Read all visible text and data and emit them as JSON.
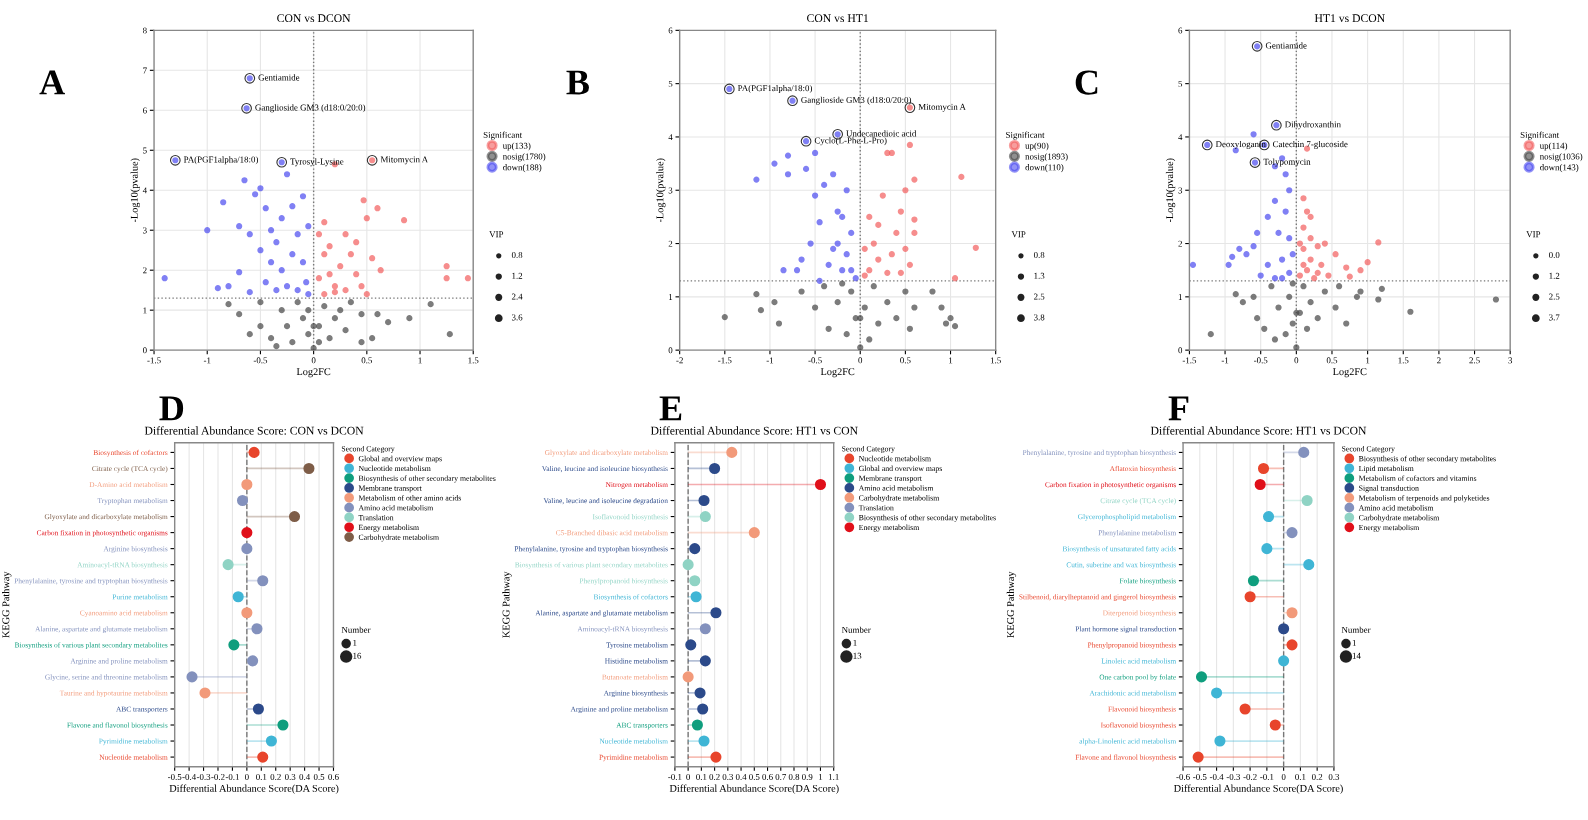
{
  "chart_data": [
    {
      "type": "scatter",
      "title": "CON vs DCON",
      "xlabel": "Log2FC",
      "ylabel": "-Log10(pvalue)",
      "xlim": [
        -1.5,
        1.5
      ],
      "xticks": [
        -1.5,
        -1,
        -0.5,
        0,
        0.5,
        1,
        1.5
      ],
      "ylim": [
        0,
        8
      ],
      "yticks": [
        0,
        1,
        2,
        3,
        4,
        5,
        6,
        7,
        8
      ],
      "grid": true,
      "legend": "right",
      "legend_title": "Significant",
      "marker": "circle",
      "ref_lines": [
        {
          "axis": "x",
          "value": 0,
          "line_style": "dotted"
        },
        {
          "axis": "y",
          "value": 1.3,
          "line_style": "dotted"
        }
      ],
      "series": [
        {
          "name": "up(133)",
          "color": "#f25c5c",
          "x": [
            0.55,
            0.2,
            0.47,
            0.6,
            0.85,
            0.5,
            0.3,
            0.1,
            0.15,
            0.35,
            0.55,
            0.63,
            1.25,
            1.25,
            1.45,
            0.4,
            0.25,
            0.1,
            0.05,
            0.2,
            0.3,
            0.45,
            0.1,
            0.15,
            0.05,
            0.4,
            0.5,
            0.2
          ],
          "values": [
            4.75,
            4.65,
            3.75,
            3.55,
            3.25,
            3.3,
            2.9,
            3.2,
            2.6,
            2.4,
            2.3,
            2.0,
            2.1,
            1.8,
            1.8,
            1.9,
            2.1,
            2.4,
            1.8,
            1.6,
            1.5,
            1.6,
            1.4,
            1.9,
            2.9,
            2.7,
            1.4,
            1.45
          ]
        },
        {
          "name": "nosig(1780)",
          "color": "#444444",
          "x": [
            -0.8,
            -0.7,
            -0.5,
            -0.5,
            -0.4,
            -0.3,
            -0.25,
            -0.2,
            -0.15,
            -0.1,
            -0.05,
            0,
            0.05,
            0.1,
            0.15,
            0.2,
            0.3,
            0.35,
            0.45,
            0.6,
            0.7,
            0.9,
            1.1,
            1.28,
            0.45,
            -0.6,
            0.0,
            -0.05,
            0.05,
            0.55,
            -0.35,
            0.25
          ],
          "values": [
            1.15,
            0.9,
            1.2,
            0.6,
            0.3,
            1.0,
            0.6,
            0.2,
            1.2,
            0.8,
            0.4,
            0.05,
            0.6,
            1.1,
            0.3,
            0.8,
            0.5,
            1.2,
            0.9,
            0.9,
            0.7,
            0.8,
            1.15,
            0.4,
            0.2,
            0.4,
            0.6,
            1.0,
            0.2,
            0.3,
            0.1,
            1.0
          ]
        },
        {
          "name": "down(188)",
          "color": "#4a4af0",
          "x": [
            -1.4,
            -1.0,
            -0.85,
            -0.8,
            -0.7,
            -0.7,
            -0.65,
            -0.6,
            -0.55,
            -0.5,
            -0.5,
            -0.45,
            -0.45,
            -0.4,
            -0.4,
            -0.35,
            -0.35,
            -0.3,
            -0.3,
            -0.25,
            -0.25,
            -0.2,
            -0.2,
            -0.15,
            -0.15,
            -0.1,
            -0.1,
            -0.07,
            -0.05,
            -0.05,
            -0.6,
            -0.63,
            -1.3,
            -0.3,
            -0.6,
            -0.9
          ],
          "values": [
            1.8,
            3.0,
            3.7,
            1.6,
            3.1,
            1.95,
            4.25,
            2.9,
            3.9,
            4.05,
            2.5,
            3.55,
            1.7,
            3.0,
            2.2,
            2.7,
            1.5,
            3.3,
            2.0,
            4.4,
            1.6,
            3.6,
            2.4,
            2.9,
            1.5,
            3.85,
            2.2,
            1.7,
            3.1,
            1.4,
            6.8,
            6.05,
            4.75,
            4.7,
            1.45,
            1.55
          ]
        }
      ],
      "annotations": [
        "A",
        {
          "text": "Gentiamide",
          "x": -0.6,
          "y": 6.8
        },
        {
          "text": "Ganglioside GM3 (d18:0/20:0)",
          "x": -0.63,
          "y": 6.05
        },
        {
          "text": "PA(PGF1alpha/18:0)",
          "x": -1.3,
          "y": 4.75
        },
        {
          "text": "Tyrosyl-Lysine",
          "x": -0.3,
          "y": 4.7
        },
        {
          "text": "Mitomycin A",
          "x": 0.55,
          "y": 4.75
        },
        "VIP",
        "0.8",
        "1.2",
        "2.4",
        "3.6"
      ]
    },
    {
      "type": "scatter",
      "title": "CON vs HT1",
      "xlabel": "Log2FC",
      "ylabel": "-Log10(pvalue)",
      "xlim": [
        -2,
        1.5
      ],
      "xticks": [
        -2,
        -1.5,
        -1,
        -0.5,
        0,
        0.5,
        1,
        1.5
      ],
      "ylim": [
        0,
        6
      ],
      "yticks": [
        0,
        1,
        2,
        3,
        4,
        5,
        6
      ],
      "grid": true,
      "legend": "right",
      "legend_title": "Significant",
      "marker": "circle",
      "ref_lines": [
        {
          "axis": "x",
          "value": 0,
          "line_style": "dotted"
        },
        {
          "axis": "y",
          "value": 1.3,
          "line_style": "dotted"
        }
      ],
      "series": [
        {
          "name": "up(90)",
          "color": "#f25c5c",
          "x": [
            0.55,
            0.55,
            0.3,
            0.6,
            1.12,
            1.28,
            1.05,
            0.5,
            0.25,
            0.45,
            0.6,
            0.4,
            0.2,
            0.1,
            0.5,
            0.35,
            0.2,
            0.1,
            0.05,
            0.3,
            0.45,
            0.55,
            0.15,
            0.05,
            0.6,
            0.35
          ],
          "values": [
            4.55,
            3.85,
            3.7,
            3.2,
            3.25,
            1.92,
            1.35,
            3.0,
            2.9,
            2.6,
            2.45,
            2.2,
            2.35,
            2.5,
            1.9,
            1.8,
            1.7,
            1.5,
            1.9,
            1.45,
            1.45,
            1.6,
            2.0,
            1.4,
            2.2,
            3.7
          ]
        },
        {
          "name": "nosig(1893)",
          "color": "#444444",
          "x": [
            -1.5,
            -1.15,
            -1.1,
            -0.95,
            -0.9,
            -0.65,
            -0.5,
            -0.4,
            -0.35,
            -0.25,
            -0.15,
            -0.1,
            -0.05,
            0,
            0.05,
            0.1,
            0.15,
            0.2,
            0.3,
            0.4,
            0.5,
            0.55,
            0.6,
            0.8,
            0.9,
            0.95,
            1.0,
            1.05,
            0.0,
            -0.2
          ],
          "values": [
            0.62,
            1.05,
            0.75,
            0.9,
            0.5,
            1.1,
            0.8,
            1.2,
            0.4,
            0.9,
            0.3,
            1.1,
            0.6,
            0.05,
            0.8,
            0.2,
            1.2,
            0.5,
            0.9,
            0.6,
            1.1,
            0.4,
            0.8,
            1.1,
            0.8,
            0.5,
            0.6,
            0.45,
            0.6,
            1.25
          ]
        },
        {
          "name": "down(110)",
          "color": "#4a4af0",
          "x": [
            -1.45,
            -0.75,
            -0.6,
            -0.25,
            -1.15,
            -0.95,
            -0.8,
            -0.8,
            -0.6,
            -0.5,
            -0.45,
            -0.4,
            -0.55,
            -0.7,
            -0.85,
            -0.65,
            -0.3,
            -0.25,
            -0.25,
            -0.2,
            -0.15,
            -0.35,
            -0.1,
            -0.1,
            -0.05,
            -0.2,
            -0.3,
            -0.45,
            -0.15,
            -0.5
          ],
          "values": [
            4.9,
            4.68,
            3.92,
            4.05,
            3.2,
            3.5,
            3.3,
            3.65,
            3.4,
            2.9,
            2.4,
            3.1,
            2.0,
            1.5,
            1.5,
            1.7,
            3.3,
            2.6,
            2.0,
            2.5,
            1.8,
            1.6,
            2.2,
            1.5,
            1.35,
            1.5,
            1.9,
            1.3,
            3.0,
            3.7
          ]
        }
      ],
      "annotations": [
        "B",
        {
          "text": "PA(PGF1alpha/18:0)",
          "x": -1.45,
          "y": 4.9
        },
        {
          "text": "Ganglioside GM3 (d18:0/20:0)",
          "x": -0.75,
          "y": 4.68
        },
        {
          "text": "Mitomycin A",
          "x": 0.55,
          "y": 4.55
        },
        {
          "text": "Undecanedioic acid",
          "x": -0.25,
          "y": 4.05
        },
        {
          "text": "Cyclo(L-Phe-L-Pro)",
          "x": -0.6,
          "y": 3.92
        },
        "VIP",
        "0.8",
        "1.3",
        "2.5",
        "3.8"
      ]
    },
    {
      "type": "scatter",
      "title": "HT1 vs DCON",
      "xlabel": "Log2FC",
      "ylabel": "-Log10(pvalue)",
      "xlim": [
        -1.5,
        3
      ],
      "xticks": [
        -1.5,
        -1,
        -0.5,
        0,
        0.5,
        1,
        1.5,
        2,
        2.5,
        3
      ],
      "ylim": [
        0,
        6
      ],
      "yticks": [
        0,
        1,
        2,
        3,
        4,
        5,
        6
      ],
      "grid": true,
      "legend": "right",
      "legend_title": "Significant",
      "marker": "circle",
      "ref_lines": [
        {
          "axis": "x",
          "value": 0,
          "line_style": "dotted"
        },
        {
          "axis": "y",
          "value": 1.3,
          "line_style": "dotted"
        }
      ],
      "series": [
        {
          "name": "up(114)",
          "color": "#f25c5c",
          "x": [
            0.15,
            0.1,
            0.15,
            0.1,
            0.2,
            0.3,
            0.4,
            0.1,
            0.2,
            0.35,
            0.15,
            0.05,
            0.45,
            0.7,
            0.9,
            0.75,
            1.0,
            1.15,
            0.25,
            0.1,
            0.3,
            0.05,
            0.2,
            0.55
          ],
          "values": [
            3.78,
            2.85,
            2.6,
            2.3,
            2.1,
            1.95,
            2.0,
            1.9,
            1.7,
            1.6,
            1.5,
            1.4,
            1.4,
            1.55,
            1.5,
            1.38,
            1.65,
            2.02,
            1.35,
            1.6,
            1.45,
            2.0,
            2.5,
            1.8
          ]
        },
        {
          "name": "nosig(1036)",
          "color": "#444444",
          "x": [
            -1.2,
            -0.85,
            -0.75,
            -0.6,
            -0.55,
            -0.45,
            -0.35,
            -0.25,
            -0.15,
            -0.1,
            -0.05,
            0,
            0.05,
            0.1,
            0.15,
            0.2,
            0.3,
            0.4,
            0.55,
            0.7,
            0.9,
            1.15,
            1.2,
            1.6,
            2.8,
            0.85,
            0.0,
            -0.3,
            0.6,
            -0.05
          ],
          "values": [
            0.3,
            1.05,
            0.9,
            1.0,
            0.6,
            0.4,
            1.2,
            0.8,
            0.3,
            1.0,
            0.5,
            0.05,
            0.7,
            1.2,
            0.4,
            0.9,
            0.6,
            1.1,
            0.8,
            0.5,
            1.1,
            0.95,
            1.15,
            0.72,
            0.95,
            1.0,
            0.7,
            0.2,
            1.2,
            1.25
          ]
        },
        {
          "name": "down(143)",
          "color": "#4a4af0",
          "x": [
            -0.55,
            -0.28,
            -0.6,
            -0.45,
            -1.25,
            -0.58,
            -0.85,
            -0.2,
            -0.3,
            -0.15,
            -0.1,
            -0.3,
            -0.15,
            -0.4,
            -0.25,
            -0.55,
            -0.1,
            -0.6,
            -0.8,
            -0.9,
            -0.7,
            -0.4,
            -0.2,
            -0.05,
            -0.5,
            -1.45,
            -0.95,
            -0.3,
            -0.1,
            -0.2
          ],
          "values": [
            5.7,
            4.22,
            4.05,
            3.85,
            3.85,
            3.52,
            3.75,
            3.6,
            3.45,
            3.3,
            3.0,
            2.8,
            2.6,
            2.5,
            2.2,
            2.2,
            2.1,
            1.95,
            1.9,
            1.75,
            1.8,
            1.6,
            1.7,
            1.8,
            1.4,
            1.6,
            1.6,
            1.35,
            1.45,
            1.35
          ]
        }
      ],
      "annotations": [
        "C",
        {
          "text": "Gentiamide",
          "x": -0.55,
          "y": 5.7
        },
        {
          "text": "Dihydroxanthin",
          "x": -0.28,
          "y": 4.22
        },
        {
          "text": "Catechin 7-glucoside",
          "x": -0.45,
          "y": 3.85
        },
        {
          "text": "Deoxyloganin",
          "x": -1.25,
          "y": 3.85
        },
        {
          "text": "Tolypomycin",
          "x": -0.58,
          "y": 3.52
        },
        "VIP",
        "0.0",
        "1.2",
        "2.5",
        "3.7"
      ]
    },
    {
      "type": "lollipop",
      "orientation": "horizontal",
      "title": "Differential Abundance Score: CON vs DCON",
      "xlabel": "Differential Abundance Score(DA Score)",
      "ylabel": "KEGG Pathway",
      "legend_title": "Second Category",
      "legend": "right",
      "grid": "x",
      "marker": "circle",
      "xlim": [
        -0.5,
        0.6
      ],
      "xticks": [
        -0.5,
        -0.4,
        -0.3,
        -0.2,
        -0.1,
        0,
        0.1,
        0.2,
        0.3,
        0.4,
        0.5,
        0.6
      ],
      "ref_lines": [
        {
          "axis": "x",
          "value": 0,
          "line_style": "dashed"
        }
      ],
      "categories": [
        "Biosynthesis of cofactors",
        "Citrate cycle (TCA cycle)",
        "D-Amino acid metabolism",
        "Tryptophan metabolism",
        "Glyoxylate and dicarboxylate metabolism",
        "Carbon fixation in photosynthetic organisms",
        "Arginine biosynthesis",
        "Aminoacyl-tRNA biosynthesis",
        "Phenylalanine, tyrosine and tryptophan biosynthesis",
        "Purine metabolism",
        "Cyanoamino acid metabolism",
        "Alanine, aspartate and glutamate metabolism",
        "Biosynthesis of various plant secondary metabolites",
        "Arginine and proline metabolism",
        "Glycine, serine and threonine metabolism",
        "Taurine and hypotaurine metabolism",
        "ABC transporters",
        "Flavone and flavonol biosynthesis",
        "Pyrimidine metabolism",
        "Nucleotide metabolism"
      ],
      "series": [
        {
          "name": "Global and overview maps",
          "color": "#e8452c",
          "values": [
            0.05,
            null,
            null,
            null,
            null,
            null,
            null,
            null,
            null,
            null,
            null,
            null,
            null,
            null,
            null,
            null,
            null,
            null,
            null,
            0.11
          ]
        },
        {
          "name": "Nucleotide metabolism",
          "color": "#3fb5d5",
          "values": [
            null,
            null,
            null,
            null,
            null,
            null,
            null,
            null,
            null,
            -0.06,
            null,
            null,
            null,
            null,
            null,
            null,
            null,
            null,
            0.17,
            null
          ]
        },
        {
          "name": "Biosynthesis of other secondary metabolites",
          "color": "#0f9e7e",
          "values": [
            null,
            null,
            null,
            null,
            null,
            null,
            null,
            null,
            null,
            null,
            null,
            null,
            -0.09,
            null,
            null,
            null,
            null,
            0.25,
            null,
            null
          ]
        },
        {
          "name": "Membrane transport",
          "color": "#2c4a8a",
          "values": [
            null,
            null,
            null,
            null,
            null,
            null,
            null,
            null,
            null,
            null,
            null,
            null,
            null,
            null,
            null,
            null,
            0.08,
            null,
            null,
            null
          ]
        },
        {
          "name": "Metabolism of other amino acids",
          "color": "#f29a7a",
          "values": [
            null,
            null,
            0,
            null,
            null,
            null,
            null,
            null,
            null,
            null,
            0,
            null,
            null,
            null,
            null,
            -0.29,
            null,
            null,
            null,
            null
          ]
        },
        {
          "name": "Amino acid metabolism",
          "color": "#8391bd",
          "values": [
            null,
            null,
            null,
            -0.03,
            null,
            null,
            0,
            null,
            0.11,
            null,
            null,
            0.07,
            null,
            0.04,
            -0.38,
            null,
            null,
            null,
            null,
            null
          ]
        },
        {
          "name": "Translation",
          "color": "#8fd3c4",
          "values": [
            null,
            null,
            null,
            null,
            null,
            null,
            null,
            -0.13,
            null,
            null,
            null,
            null,
            null,
            null,
            null,
            null,
            null,
            null,
            null,
            null
          ]
        },
        {
          "name": "Energy metabolism",
          "color": "#e0101a",
          "values": [
            null,
            null,
            null,
            null,
            null,
            0,
            null,
            null,
            null,
            null,
            null,
            null,
            null,
            null,
            null,
            null,
            null,
            null,
            null,
            null
          ]
        },
        {
          "name": "Carbohydrate metabolism",
          "color": "#7e5d48",
          "values": [
            null,
            0.43,
            null,
            null,
            0.33,
            null,
            null,
            null,
            null,
            null,
            null,
            null,
            null,
            null,
            null,
            null,
            null,
            null,
            null,
            null
          ]
        }
      ],
      "annotations": [
        "D",
        "Number",
        "1",
        "16"
      ]
    },
    {
      "type": "lollipop",
      "orientation": "horizontal",
      "title": "Differential Abundance Score: HT1 vs CON",
      "xlabel": "Differential Abundance Score(DA Score)",
      "ylabel": "KEGG Pathway",
      "legend_title": "Second Category",
      "legend": "right",
      "grid": "x",
      "marker": "circle",
      "xlim": [
        -0.1,
        1.1
      ],
      "xticks": [
        -0.1,
        0,
        0.1,
        0.2,
        0.3,
        0.4,
        0.5,
        0.6,
        0.7,
        0.8,
        0.9,
        1,
        1.1
      ],
      "ref_lines": [
        {
          "axis": "x",
          "value": 0,
          "line_style": "dashed"
        }
      ],
      "categories": [
        "Glyoxylate and dicarboxylate metabolism",
        "Valine, leucine and isoleucine biosynthesis",
        "Nitrogen metabolism",
        "Valine, leucine and isoleucine degradation",
        "Isoflavonoid biosynthesis",
        "C5-Branched dibasic acid metabolism",
        "Phenylalanine, tyrosine and tryptophan biosynthesis",
        "Biosynthesis of various plant secondary metabolites",
        "Phenylpropanoid biosynthesis",
        "Biosynthesis of cofactors",
        "Alanine, aspartate and glutamate metabolism",
        "Aminoacyl-tRNA biosynthesis",
        "Tyrosine metabolism",
        "Histidine metabolism",
        "Butanoate metabolism",
        "Arginine biosynthesis",
        "Arginine and proline metabolism",
        "ABC transporters",
        "Nucleotide metabolism",
        "Pyrimidine metabolism"
      ],
      "series": [
        {
          "name": "Nucleotide metabolism",
          "color": "#e8452c",
          "values": [
            null,
            null,
            null,
            null,
            null,
            null,
            null,
            null,
            null,
            null,
            null,
            null,
            null,
            null,
            null,
            null,
            null,
            null,
            null,
            0.21
          ]
        },
        {
          "name": "Global and overview maps",
          "color": "#3fb5d5",
          "values": [
            null,
            null,
            null,
            null,
            null,
            null,
            null,
            null,
            null,
            0.06,
            null,
            null,
            null,
            null,
            null,
            null,
            null,
            null,
            0.12,
            null
          ]
        },
        {
          "name": "Membrane transport",
          "color": "#0f9e7e",
          "values": [
            null,
            null,
            null,
            null,
            null,
            null,
            null,
            null,
            null,
            null,
            null,
            null,
            null,
            null,
            null,
            null,
            null,
            0.07,
            null,
            null
          ]
        },
        {
          "name": "Amino acid metabolism",
          "color": "#2c4a8a",
          "values": [
            null,
            0.2,
            null,
            0.12,
            null,
            null,
            0.05,
            null,
            null,
            null,
            0.21,
            null,
            0.02,
            0.13,
            null,
            0.09,
            0.11,
            null,
            null,
            null
          ]
        },
        {
          "name": "Carbohydrate metabolism",
          "color": "#f29a7a",
          "values": [
            0.33,
            null,
            null,
            null,
            null,
            0.5,
            null,
            null,
            null,
            null,
            null,
            null,
            null,
            null,
            0,
            null,
            null,
            null,
            null,
            null
          ]
        },
        {
          "name": "Translation",
          "color": "#8391bd",
          "values": [
            null,
            null,
            null,
            null,
            null,
            null,
            null,
            null,
            null,
            null,
            null,
            0.13,
            null,
            null,
            null,
            null,
            null,
            null,
            null,
            null
          ]
        },
        {
          "name": "Biosynthesis of other secondary metabolites",
          "color": "#8fd3c4",
          "values": [
            null,
            null,
            null,
            null,
            0.13,
            null,
            null,
            0,
            0.05,
            null,
            null,
            null,
            null,
            null,
            null,
            null,
            null,
            null,
            null,
            null
          ]
        },
        {
          "name": "Energy metabolism",
          "color": "#e0101a",
          "values": [
            null,
            null,
            1.0,
            null,
            null,
            null,
            null,
            null,
            null,
            null,
            null,
            null,
            null,
            null,
            null,
            null,
            null,
            null,
            null,
            null
          ]
        }
      ],
      "annotations": [
        "E",
        "Number",
        "1",
        "13"
      ]
    },
    {
      "type": "lollipop",
      "orientation": "horizontal",
      "title": "Differential Abundance Score: HT1 vs DCON",
      "xlabel": "Differential Abundance Score(DA Score)",
      "ylabel": "KEGG Pathway",
      "legend_title": "Second Category",
      "legend": "right",
      "grid": "x",
      "marker": "circle",
      "xlim": [
        -0.6,
        0.3
      ],
      "xticks": [
        -0.6,
        -0.5,
        -0.4,
        -0.3,
        -0.2,
        -0.1,
        0,
        0.1,
        0.2,
        0.3
      ],
      "ref_lines": [
        {
          "axis": "x",
          "value": 0,
          "line_style": "dashed"
        }
      ],
      "categories": [
        "Phenylalanine, tyrosine and tryptophan biosynthesis",
        "Aflatoxin biosynthesis",
        "Carbon fixation in photosynthetic organisms",
        "Citrate cycle (TCA cycle)",
        "Glycerophospholipid metabolism",
        "Phenylalanine metabolism",
        "Biosynthesis of unsaturated fatty acids",
        "Cutin, suberine and wax biosynthesis",
        "Folate biosynthesis",
        "Stilbenoid, diarylheptanoid and gingerol biosynthesis",
        "Diterpenoid biosynthesis",
        "Plant hormone signal transduction",
        "Phenylpropanoid biosynthesis",
        "Linoleic acid metabolism",
        "One carbon pool by folate",
        "Arachidonic acid metabolism",
        "Flavonoid biosynthesis",
        "Isoflavonoid biosynthesis",
        "alpha-Linolenic acid metabolism",
        "Flavone and flavonol biosynthesis"
      ],
      "series": [
        {
          "name": "Biosynthesis of other secondary metabolites",
          "color": "#e8452c",
          "values": [
            null,
            -0.12,
            null,
            null,
            null,
            null,
            null,
            null,
            null,
            -0.2,
            null,
            null,
            0.05,
            null,
            null,
            null,
            -0.23,
            -0.05,
            null,
            -0.51
          ]
        },
        {
          "name": "Lipid metabolism",
          "color": "#3fb5d5",
          "values": [
            null,
            null,
            null,
            null,
            -0.09,
            null,
            -0.1,
            0.15,
            null,
            null,
            null,
            null,
            null,
            0,
            null,
            -0.4,
            null,
            null,
            -0.38,
            null
          ]
        },
        {
          "name": "Metabolism of cofactors and vitamins",
          "color": "#0f9e7e",
          "values": [
            null,
            null,
            null,
            null,
            null,
            null,
            null,
            null,
            -0.18,
            null,
            null,
            null,
            null,
            null,
            -0.49,
            null,
            null,
            null,
            null,
            null
          ]
        },
        {
          "name": "Signal transduction",
          "color": "#2c4a8a",
          "values": [
            null,
            null,
            null,
            null,
            null,
            null,
            null,
            null,
            null,
            null,
            null,
            0,
            null,
            null,
            null,
            null,
            null,
            null,
            null,
            null
          ]
        },
        {
          "name": "Metabolism of terpenoids and polyketides",
          "color": "#f29a7a",
          "values": [
            null,
            null,
            null,
            null,
            null,
            null,
            null,
            null,
            null,
            null,
            0.05,
            null,
            null,
            null,
            null,
            null,
            null,
            null,
            null,
            null
          ]
        },
        {
          "name": "Amino acid metabolism",
          "color": "#8391bd",
          "values": [
            0.12,
            null,
            null,
            null,
            null,
            0.05,
            null,
            null,
            null,
            null,
            null,
            null,
            null,
            null,
            null,
            null,
            null,
            null,
            null,
            null
          ]
        },
        {
          "name": "Carbohydrate metabolism",
          "color": "#8fd3c4",
          "values": [
            null,
            null,
            null,
            0.14,
            null,
            null,
            null,
            null,
            null,
            null,
            null,
            null,
            null,
            null,
            null,
            null,
            null,
            null,
            null,
            null
          ]
        },
        {
          "name": "Energy metabolism",
          "color": "#e0101a",
          "values": [
            null,
            null,
            -0.14,
            null,
            null,
            null,
            null,
            null,
            null,
            null,
            null,
            null,
            null,
            null,
            null,
            null,
            null,
            null,
            null,
            null
          ]
        }
      ],
      "annotations": [
        "F",
        "Number",
        "1",
        "14"
      ]
    }
  ]
}
